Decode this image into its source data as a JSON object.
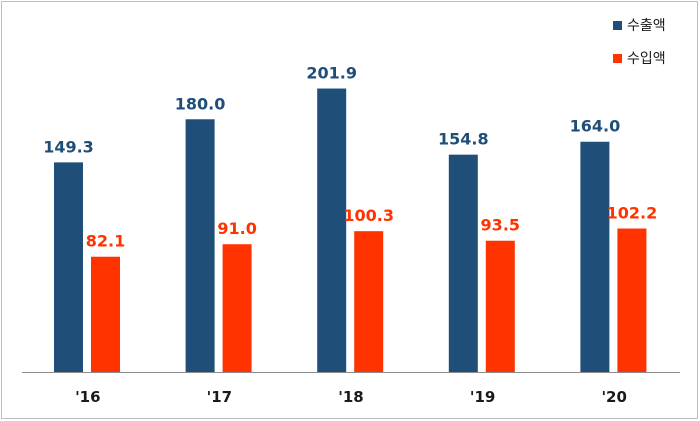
{
  "chart_data": {
    "type": "bar",
    "categories": [
      "'16",
      "'17",
      "'18",
      "'19",
      "'20"
    ],
    "series": [
      {
        "name": "수출액",
        "color": "#1f4e79",
        "values": [
          149.3,
          180.0,
          201.9,
          154.8,
          164.0
        ]
      },
      {
        "name": "수입액",
        "color": "#ff3300",
        "values": [
          82.1,
          91.0,
          100.3,
          93.5,
          102.2
        ]
      }
    ],
    "value_labels": [
      [
        "149.3",
        "180.0",
        "201.9",
        "154.8",
        "164.0"
      ],
      [
        "82.1",
        "91.0",
        "100.3",
        "93.5",
        "102.2"
      ]
    ],
    "ylim": [
      0,
      220
    ],
    "grid": false,
    "legend_position": "top-right",
    "title": "",
    "xlabel": "",
    "ylabel": ""
  }
}
